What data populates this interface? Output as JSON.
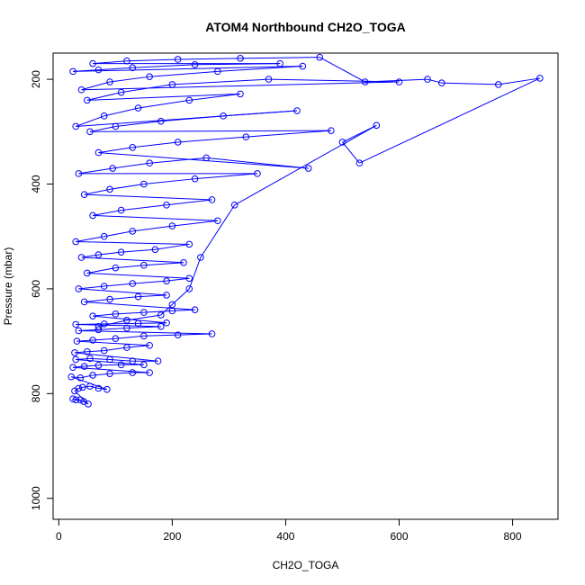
{
  "chart_data": {
    "type": "scatter",
    "title": "ATOM4 Northbound CH2O_TOGA",
    "xlabel": "CH2O_TOGA",
    "ylabel": "Pressure (mbar)",
    "xlim": [
      -10,
      880
    ],
    "ylim": [
      1040,
      150
    ],
    "y_reversed": true,
    "x_ticks": [
      0,
      200,
      400,
      600,
      800
    ],
    "y_ticks": [
      200,
      400,
      600,
      800,
      1000
    ],
    "grid": false,
    "legend": "none",
    "connected_points": true,
    "point_style": "open-circle",
    "series_color": "#0000ff",
    "series": [
      {
        "values": [
          [
            38,
            812
          ],
          [
            30,
            812
          ],
          [
            25,
            810
          ],
          [
            44,
            815
          ],
          [
            52,
            820
          ],
          [
            28,
            795
          ],
          [
            35,
            790
          ],
          [
            42,
            788
          ],
          [
            55,
            786
          ],
          [
            70,
            790
          ],
          [
            85,
            792
          ],
          [
            22,
            768
          ],
          [
            38,
            770
          ],
          [
            60,
            765
          ],
          [
            90,
            762
          ],
          [
            130,
            760
          ],
          [
            160,
            760
          ],
          [
            25,
            750
          ],
          [
            45,
            748
          ],
          [
            70,
            746
          ],
          [
            110,
            745
          ],
          [
            150,
            745
          ],
          [
            30,
            735
          ],
          [
            55,
            733
          ],
          [
            90,
            735
          ],
          [
            130,
            738
          ],
          [
            175,
            738
          ],
          [
            28,
            722
          ],
          [
            50,
            720
          ],
          [
            80,
            718
          ],
          [
            120,
            712
          ],
          [
            160,
            708
          ],
          [
            32,
            700
          ],
          [
            60,
            698
          ],
          [
            100,
            695
          ],
          [
            150,
            690
          ],
          [
            210,
            688
          ],
          [
            270,
            686
          ],
          [
            35,
            680
          ],
          [
            70,
            678
          ],
          [
            120,
            675
          ],
          [
            180,
            672
          ],
          [
            30,
            668
          ],
          [
            80,
            667
          ],
          [
            140,
            666
          ],
          [
            190,
            665
          ],
          [
            60,
            652
          ],
          [
            100,
            648
          ],
          [
            150,
            645
          ],
          [
            200,
            642
          ],
          [
            240,
            640
          ],
          [
            45,
            625
          ],
          [
            90,
            620
          ],
          [
            140,
            615
          ],
          [
            190,
            612
          ],
          [
            35,
            600
          ],
          [
            80,
            595
          ],
          [
            130,
            590
          ],
          [
            190,
            585
          ],
          [
            230,
            580
          ],
          [
            50,
            570
          ],
          [
            100,
            560
          ],
          [
            150,
            555
          ],
          [
            220,
            550
          ],
          [
            40,
            540
          ],
          [
            70,
            535
          ],
          [
            110,
            530
          ],
          [
            170,
            525
          ],
          [
            230,
            515
          ],
          [
            30,
            510
          ],
          [
            80,
            500
          ],
          [
            130,
            490
          ],
          [
            200,
            480
          ],
          [
            280,
            470
          ],
          [
            60,
            460
          ],
          [
            110,
            450
          ],
          [
            190,
            440
          ],
          [
            270,
            430
          ],
          [
            45,
            420
          ],
          [
            90,
            410
          ],
          [
            150,
            400
          ],
          [
            240,
            390
          ],
          [
            350,
            380
          ],
          [
            35,
            380
          ],
          [
            95,
            370
          ],
          [
            160,
            360
          ],
          [
            260,
            350
          ],
          [
            440,
            370
          ],
          [
            70,
            340
          ],
          [
            130,
            330
          ],
          [
            210,
            320
          ],
          [
            330,
            310
          ],
          [
            480,
            298
          ],
          [
            55,
            300
          ],
          [
            100,
            290
          ],
          [
            180,
            280
          ],
          [
            290,
            270
          ],
          [
            420,
            260
          ],
          [
            30,
            290
          ],
          [
            80,
            270
          ],
          [
            140,
            255
          ],
          [
            230,
            240
          ],
          [
            320,
            228
          ],
          [
            50,
            240
          ],
          [
            110,
            225
          ],
          [
            200,
            210
          ],
          [
            370,
            200
          ],
          [
            600,
            205
          ],
          [
            40,
            220
          ],
          [
            90,
            205
          ],
          [
            160,
            195
          ],
          [
            280,
            185
          ],
          [
            430,
            175
          ],
          [
            25,
            185
          ],
          [
            70,
            182
          ],
          [
            130,
            178
          ],
          [
            240,
            172
          ],
          [
            390,
            170
          ],
          [
            60,
            170
          ],
          [
            120,
            165
          ],
          [
            210,
            162
          ],
          [
            320,
            160
          ],
          [
            460,
            158
          ],
          [
            540,
            205
          ],
          [
            650,
            200
          ],
          [
            675,
            207
          ],
          [
            775,
            210
          ],
          [
            848,
            198
          ],
          [
            530,
            360
          ],
          [
            500,
            320
          ],
          [
            560,
            288
          ],
          [
            310,
            440
          ],
          [
            250,
            540
          ],
          [
            230,
            600
          ],
          [
            200,
            630
          ],
          [
            180,
            650
          ],
          [
            120,
            660
          ],
          [
            70,
            672
          ]
        ]
      }
    ]
  }
}
